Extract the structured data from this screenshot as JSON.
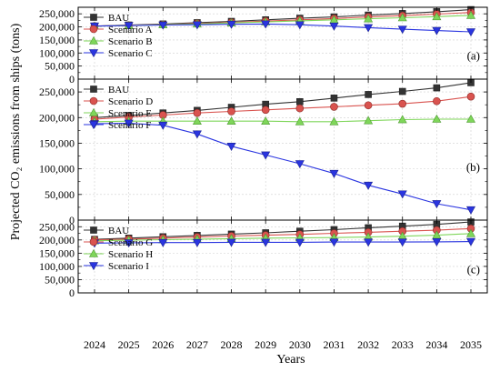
{
  "chart_data": {
    "type": "line",
    "xlabel": "Years",
    "ylabel": "Projected CO₂ emissions from ships (tons)",
    "x": [
      2024,
      2025,
      2026,
      2027,
      2028,
      2029,
      2030,
      2031,
      2032,
      2033,
      2034,
      2035
    ],
    "ylim": [
      0,
      275000
    ],
    "yticks": [
      0,
      50000,
      100000,
      150000,
      200000,
      250000
    ],
    "ytick_labels": [
      "0",
      "50,000",
      "100,000",
      "150,000",
      "200,000",
      "250,000"
    ],
    "grid": true,
    "legend_position": "top-left",
    "colors": {
      "BAU": "#333333",
      "second": "#d9534f",
      "third": "#7fd65a",
      "fourth": "#2a35e0"
    },
    "panels": [
      {
        "tag": "(a)",
        "series": [
          {
            "name": "BAU",
            "marker": "square",
            "color": "#333333",
            "values": [
              203000,
              207000,
              211000,
              216000,
              221000,
              227000,
              233000,
              238000,
              245000,
              251000,
              258000,
              266000
            ]
          },
          {
            "name": "Scenario A",
            "marker": "circle",
            "color": "#d9534f",
            "values": [
              203000,
              206000,
              209000,
              213000,
              217000,
              222000,
              227000,
              232000,
              238000,
              243000,
              249000,
              255000
            ]
          },
          {
            "name": "Scenario B",
            "marker": "triangle-up",
            "color": "#7fd65a",
            "values": [
              203000,
              205000,
              208000,
              211000,
              215000,
              219000,
              223000,
              227000,
              231000,
              235000,
              239000,
              244000
            ]
          },
          {
            "name": "Scenario C",
            "marker": "triangle-down",
            "color": "#2a35e0",
            "values": [
              203000,
              205000,
              207000,
              208000,
              210000,
              211000,
              208000,
              203000,
              197000,
              191000,
              186000,
              181000
            ]
          }
        ]
      },
      {
        "tag": "(b)",
        "series": [
          {
            "name": "BAU",
            "marker": "square",
            "color": "#333333",
            "values": [
              200000,
              204000,
              209000,
              214000,
              220000,
              226000,
              231000,
              238000,
              245000,
              251000,
              258000,
              268000
            ]
          },
          {
            "name": "Scenario D",
            "marker": "circle",
            "color": "#d9534f",
            "values": [
              197000,
              201000,
              205000,
              209000,
              212000,
              215000,
              218000,
              221000,
              224000,
              227000,
              232000,
              241000
            ]
          },
          {
            "name": "Scenario E",
            "marker": "triangle-up",
            "color": "#7fd65a",
            "values": [
              192000,
              193000,
              193000,
              193000,
              193000,
              193000,
              192000,
              192000,
              194000,
              196000,
              197000,
              197000
            ]
          },
          {
            "name": "Scenario F",
            "marker": "triangle-down",
            "color": "#2a35e0",
            "values": [
              188000,
              189000,
              185000,
              168000,
              144000,
              127000,
              110000,
              91000,
              68000,
              51000,
              32000,
              20000
            ]
          }
        ]
      },
      {
        "tag": "(c)",
        "series": [
          {
            "name": "BAU",
            "marker": "square",
            "color": "#333333",
            "values": [
              202000,
              207000,
              212000,
              217000,
              222000,
              227000,
              233000,
              239000,
              246000,
              252000,
              259000,
              268000
            ]
          },
          {
            "name": "Scenario G",
            "marker": "circle",
            "color": "#d9534f",
            "values": [
              200000,
              203000,
              207000,
              211000,
              215000,
              218000,
              221000,
              225000,
              229000,
              233000,
              237000,
              243000
            ]
          },
          {
            "name": "Scenario H",
            "marker": "triangle-up",
            "color": "#7fd65a",
            "values": [
              197000,
              199000,
              201000,
              203000,
              205000,
              207000,
              208000,
              209000,
              211000,
              214000,
              218000,
              224000
            ]
          },
          {
            "name": "Scenario I",
            "marker": "triangle-down",
            "color": "#2a35e0",
            "values": [
              188000,
              189000,
              190000,
              190000,
              191000,
              191000,
              191000,
              192000,
              192000,
              192000,
              193000,
              194000
            ]
          }
        ]
      }
    ]
  }
}
